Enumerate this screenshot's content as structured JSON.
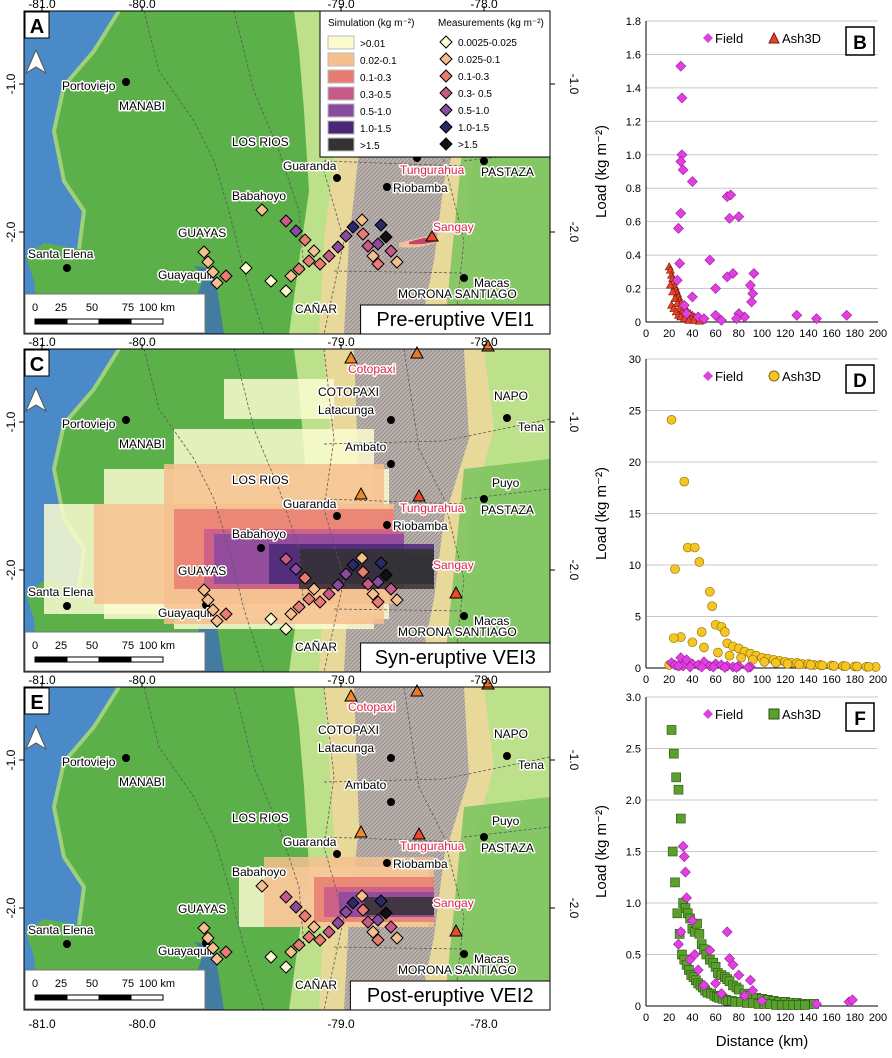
{
  "maps": [
    {
      "letter": "A",
      "label": "Pre-eruptive VEI1",
      "lon_ticks": [
        "-81.0",
        "-80.0",
        "-79.0",
        "-78.0"
      ],
      "lat_ticks": [
        "-1.0",
        "-2.0"
      ],
      "places": [
        "Portoviejo",
        "MANABI",
        "LOS RIOS",
        "Guaranda",
        "Tungurahua",
        "Riobamba",
        "PASTAZA",
        "Babahoyo",
        "Sangay",
        "GUAYAS",
        "Santa Elena",
        "Guayaquil",
        "Macas",
        "CAÑAR",
        "MORONA SANTIAGO"
      ],
      "legend": {
        "sim_title": "Simulation (kg m⁻²)",
        "sim_items": [
          ">0.01",
          "0.02-0.1",
          "0.1-0.3",
          "0.3-0.5",
          "0.5-1.0",
          "1.0-1.5",
          ">1.5"
        ],
        "sim_colors": [
          "#fcfcd0",
          "#f6c08e",
          "#e87c72",
          "#c85a8a",
          "#8a4aa0",
          "#4a2878",
          "#333333"
        ],
        "meas_title": "Measurements (kg m⁻²)",
        "meas_items": [
          "0.0025-0.025",
          "0.025-0.1",
          "0.1-0.3",
          "0.3- 0.5",
          "0.5-1.0",
          "1.0-1.5",
          ">1.5"
        ],
        "meas_colors": [
          "#fffbd0",
          "#f6c08e",
          "#e87c72",
          "#c85a8a",
          "#8a4aa0",
          "#2a2a6a",
          "#111111"
        ]
      },
      "scale": [
        "0",
        "25",
        "50",
        "75",
        "100 km"
      ]
    },
    {
      "letter": "C",
      "label": "Syn-eruptive VEI3",
      "lon_ticks": [
        "-81.0",
        "-80.0",
        "-79.0",
        "-78.0"
      ],
      "lat_ticks": [
        "-1.0",
        "-2.0"
      ],
      "places": [
        "Portoviejo",
        "MANABI",
        "COTOPAXI",
        "Cotopaxi",
        "Latacunga",
        "NAPO",
        "Tena",
        "Ambato",
        "LOS RIOS",
        "Guaranda",
        "Tungurahua",
        "Riobamba",
        "Puyo",
        "PASTAZA",
        "Babahoyo",
        "Sangay",
        "GUAYAS",
        "Santa Elena",
        "Guayaquil",
        "Macas",
        "CAÑAR",
        "MORONA SANTIAGO"
      ],
      "scale": [
        "0",
        "25",
        "50",
        "75",
        "100 km"
      ]
    },
    {
      "letter": "E",
      "label": "Post-eruptive VEI2",
      "lon_ticks": [
        "-81.0",
        "-80.0",
        "-79.0",
        "-78.0"
      ],
      "lat_ticks": [
        "-1.0",
        "-2.0"
      ],
      "places": [
        "Portoviejo",
        "MANABI",
        "COTOPAXI",
        "Cotopaxi",
        "Latacunga",
        "NAPO",
        "Tena",
        "Ambato",
        "LOS RIOS",
        "Guaranda",
        "Tungurahua",
        "Riobamba",
        "Puyo",
        "PASTAZA",
        "Babahoyo",
        "Sangay",
        "GUAYAS",
        "Santa Elena",
        "Guayaquil",
        "Macas",
        "CAÑAR",
        "MORONA SANTIAGO"
      ],
      "scale": [
        "0",
        "25",
        "50",
        "75",
        "100 km"
      ]
    }
  ],
  "chart_data": [
    {
      "letter": "B",
      "type": "scatter",
      "ylabel": "Load (kg m⁻²)",
      "xlabel": "",
      "xlim": [
        0,
        200
      ],
      "ylim": [
        0,
        1.8
      ],
      "xticks": [
        "0",
        "20",
        "40",
        "60",
        "80",
        "100",
        "120",
        "140",
        "160",
        "180",
        "200"
      ],
      "yticks": [
        "0",
        "0.2",
        "0.4",
        "0.6",
        "0.8",
        "1.0",
        "1.2",
        "1.4",
        "1.6",
        "1.8"
      ],
      "series": [
        {
          "name": "Field",
          "marker": "diamond",
          "color": "#e040e0",
          "x": [
            30,
            31,
            31,
            30,
            32,
            28,
            30,
            40,
            55,
            70,
            73,
            72,
            80,
            93,
            92,
            91,
            85,
            70,
            75,
            60,
            40,
            35,
            33,
            45,
            50,
            29,
            27,
            60,
            80,
            130,
            147,
            173,
            90,
            78,
            65
          ],
          "y": [
            1.53,
            1.34,
            1.0,
            0.96,
            0.91,
            0.56,
            0.65,
            0.84,
            0.37,
            0.75,
            0.76,
            0.62,
            0.63,
            0.29,
            0.17,
            0.12,
            0.03,
            0.27,
            0.29,
            0.2,
            0.15,
            0.05,
            0.1,
            0.03,
            0.02,
            0.35,
            0.25,
            0.04,
            0.05,
            0.04,
            0.02,
            0.04,
            0.22,
            0.02,
            0.01
          ]
        },
        {
          "name": "Ash3D",
          "marker": "triangle",
          "color": "#e8432a",
          "edge": "#7a1a0a",
          "x": [
            20,
            21,
            22,
            23,
            24,
            25,
            26,
            27,
            28,
            29,
            30,
            32,
            34,
            36,
            38,
            40,
            42,
            45,
            48,
            21,
            23,
            25,
            27,
            29,
            31,
            33,
            36,
            39,
            43,
            22,
            24,
            26,
            28,
            30,
            33,
            37,
            41,
            46
          ],
          "y": [
            0.33,
            0.31,
            0.28,
            0.26,
            0.24,
            0.21,
            0.19,
            0.17,
            0.15,
            0.13,
            0.11,
            0.09,
            0.08,
            0.06,
            0.05,
            0.04,
            0.03,
            0.02,
            0.01,
            0.22,
            0.18,
            0.14,
            0.11,
            0.08,
            0.06,
            0.04,
            0.03,
            0.02,
            0.01,
            0.1,
            0.08,
            0.06,
            0.04,
            0.03,
            0.02,
            0.01,
            0.01,
            0.005
          ]
        }
      ]
    },
    {
      "letter": "D",
      "type": "scatter",
      "ylabel": "Load (kg m⁻²)",
      "xlabel": "",
      "xlim": [
        0,
        200
      ],
      "ylim": [
        0,
        30
      ],
      "xticks": [
        "0",
        "20",
        "40",
        "60",
        "80",
        "100",
        "120",
        "140",
        "160",
        "180",
        "200"
      ],
      "yticks": [
        "0",
        "5",
        "10",
        "15",
        "20",
        "25",
        "30"
      ],
      "series": [
        {
          "name": "Field",
          "marker": "diamond",
          "color": "#e040e0",
          "x": [
            22,
            25,
            30,
            32,
            35,
            40,
            45,
            50,
            55,
            60,
            65,
            70,
            75,
            80,
            90,
            28,
            38,
            48,
            58,
            68,
            78,
            88
          ],
          "y": [
            0.5,
            0.3,
            1.0,
            0.2,
            0.8,
            0.4,
            0.3,
            0.6,
            0.2,
            0.4,
            0.3,
            0.2,
            0.1,
            0.2,
            0.1,
            0.2,
            0.1,
            0.1,
            0.1,
            0.05,
            0.05,
            0.05
          ]
        },
        {
          "name": "Ash3D",
          "marker": "circle",
          "color": "#f5c623",
          "edge": "#8a6a00",
          "x": [
            22,
            25,
            33,
            36,
            42,
            46,
            48,
            55,
            57,
            60,
            65,
            68,
            70,
            75,
            80,
            85,
            90,
            95,
            100,
            105,
            110,
            115,
            120,
            125,
            130,
            135,
            140,
            145,
            150,
            160,
            170,
            180,
            190,
            198,
            30,
            40,
            50,
            62,
            72,
            82,
            92,
            102,
            112,
            122,
            132,
            142,
            152,
            162,
            172,
            182,
            192,
            20,
            24,
            28
          ],
          "y": [
            24.1,
            9.6,
            18.1,
            11.7,
            11.7,
            10.3,
            3.5,
            7.4,
            6.0,
            4.2,
            4.0,
            3.5,
            2.4,
            2.1,
            1.9,
            1.6,
            1.4,
            1.2,
            1.0,
            0.9,
            0.8,
            0.7,
            0.6,
            0.5,
            0.5,
            0.4,
            0.4,
            0.3,
            0.3,
            0.25,
            0.2,
            0.15,
            0.12,
            0.1,
            3.0,
            2.5,
            2.0,
            1.5,
            1.2,
            1.0,
            0.8,
            0.6,
            0.5,
            0.4,
            0.35,
            0.3,
            0.25,
            0.2,
            0.18,
            0.15,
            0.12,
            0.3,
            2.9,
            0.2
          ]
        }
      ]
    },
    {
      "letter": "F",
      "type": "scatter",
      "ylabel": "Load (kg m⁻²)",
      "xlabel": "Distance (km)",
      "xlim": [
        0,
        200
      ],
      "ylim": [
        0,
        3.0
      ],
      "xticks": [
        "0",
        "20",
        "40",
        "60",
        "80",
        "100",
        "120",
        "140",
        "160",
        "180",
        "200"
      ],
      "yticks": [
        "0",
        "0.5",
        "1.0",
        "1.5",
        "2.0",
        "2.5",
        "3.0"
      ],
      "series": [
        {
          "name": "Field",
          "marker": "diamond",
          "color": "#e040e0",
          "x": [
            32,
            33,
            34,
            35,
            30,
            40,
            55,
            70,
            72,
            75,
            80,
            90,
            92,
            60,
            45,
            38,
            50,
            65,
            175,
            178,
            147,
            85,
            100,
            28,
            42
          ],
          "y": [
            1.55,
            1.45,
            1.3,
            1.05,
            0.72,
            0.83,
            0.54,
            0.72,
            0.46,
            0.4,
            0.3,
            0.25,
            0.15,
            0.22,
            0.35,
            0.45,
            0.2,
            0.12,
            0.04,
            0.06,
            0.02,
            0.1,
            0.05,
            0.6,
            0.5
          ]
        },
        {
          "name": "Ash3D",
          "marker": "square",
          "color": "#5aa02c",
          "edge": "#2a5010",
          "x": [
            22,
            24,
            26,
            28,
            30,
            32,
            34,
            36,
            38,
            40,
            42,
            44,
            46,
            48,
            50,
            52,
            55,
            58,
            60,
            62,
            65,
            68,
            70,
            72,
            75,
            78,
            80,
            85,
            90,
            95,
            100,
            105,
            110,
            115,
            120,
            125,
            130,
            135,
            140,
            145,
            23,
            25,
            27,
            29,
            31,
            33,
            35,
            37,
            39,
            41,
            43,
            45,
            47,
            49,
            51,
            53,
            56,
            59,
            61,
            63,
            66,
            69,
            71,
            74,
            77,
            82,
            87,
            92,
            97,
            102,
            107,
            112,
            117,
            122,
            127,
            132,
            137
          ],
          "y": [
            2.68,
            2.45,
            2.22,
            2.1,
            1.82,
            1.0,
            0.95,
            0.9,
            0.85,
            0.75,
            0.72,
            0.8,
            0.7,
            0.6,
            0.55,
            0.5,
            0.45,
            0.42,
            0.38,
            0.32,
            0.3,
            0.28,
            0.26,
            0.24,
            0.2,
            0.18,
            0.16,
            0.12,
            0.1,
            0.08,
            0.07,
            0.06,
            0.05,
            0.04,
            0.04,
            0.03,
            0.03,
            0.02,
            0.02,
            0.02,
            1.5,
            1.2,
            0.9,
            0.7,
            0.5,
            0.45,
            0.4,
            0.35,
            0.3,
            0.28,
            0.25,
            0.22,
            0.2,
            0.18,
            0.15,
            0.13,
            0.12,
            0.1,
            0.09,
            0.08,
            0.07,
            0.06,
            0.05,
            0.05,
            0.04,
            0.04,
            0.03,
            0.03,
            0.02,
            0.02,
            0.02,
            0.01,
            0.01,
            0.01,
            0.01,
            0.01,
            0.01
          ]
        }
      ]
    }
  ]
}
